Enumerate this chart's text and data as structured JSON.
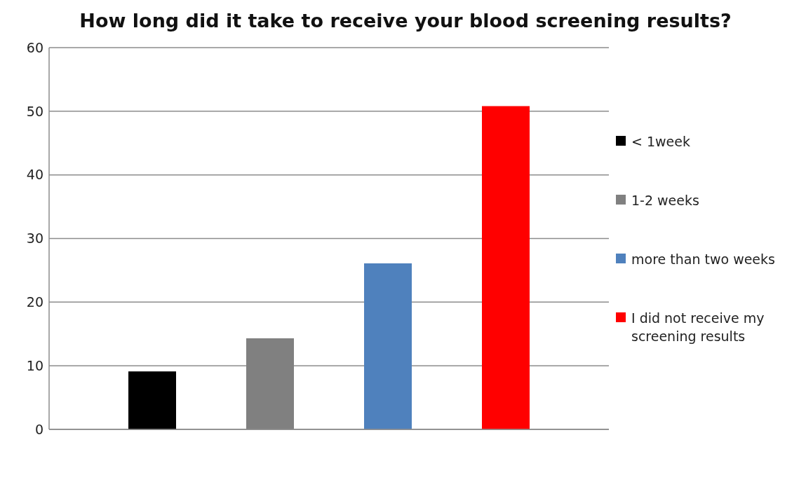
{
  "chart_data": {
    "type": "bar",
    "title": "How long did it take to receive your blood screening results?",
    "categories": [
      null
    ],
    "series": [
      {
        "name": "< 1week",
        "color": "#000000",
        "values": [
          9.1
        ]
      },
      {
        "name": "1-2 weeks",
        "color": "#808080",
        "values": [
          14.3
        ]
      },
      {
        "name": "more than two weeks",
        "color": "#4f81bd",
        "values": [
          26.1
        ]
      },
      {
        "name": "I did not receive my screening results",
        "color": "#ff0000",
        "values": [
          50.8
        ]
      }
    ],
    "ylim": [
      0,
      60
    ],
    "yticks": [
      0,
      10,
      20,
      30,
      40,
      50,
      60
    ],
    "grid": "y",
    "legend": "right",
    "tick_labels": "y"
  }
}
